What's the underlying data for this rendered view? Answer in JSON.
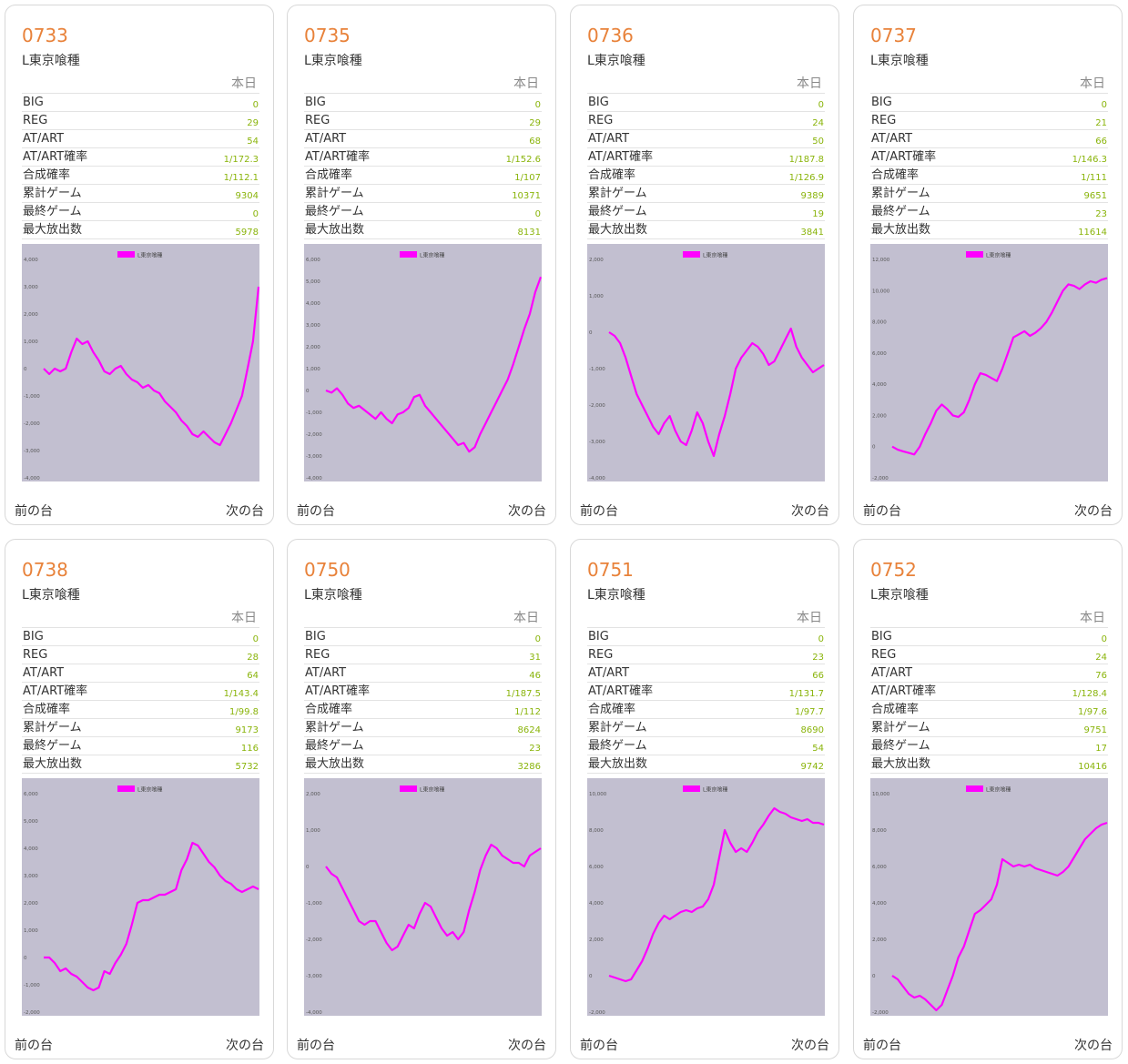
{
  "header_today": "本日",
  "nav": {
    "prev": "前の台",
    "next": "次の台"
  },
  "row_labels": [
    "BIG",
    "REG",
    "AT/ART",
    "AT/ART確率",
    "合成確率",
    "累計ゲーム",
    "最終ゲーム",
    "最大放出数"
  ],
  "colors": {
    "accent": "#e8823a",
    "value": "#8ab40b",
    "series": "#ff00ff",
    "plot_bg": "#c2bfd0"
  },
  "machines": [
    {
      "number": "0733",
      "name": "L東京喰種",
      "values": [
        "0",
        "29",
        "54",
        "1/172.3",
        "1/112.1",
        "9304",
        "0",
        "5978"
      ],
      "chart": {
        "legend": "L東京喰種",
        "ymin": -4000,
        "ymax": 4000,
        "step": 1000,
        "y": [
          0,
          -200,
          0,
          -100,
          0,
          600,
          1100,
          900,
          1000,
          600,
          300,
          -100,
          -200,
          0,
          100,
          -200,
          -400,
          -500,
          -700,
          -600,
          -800,
          -900,
          -1200,
          -1400,
          -1600,
          -1900,
          -2100,
          -2400,
          -2500,
          -2300,
          -2500,
          -2700,
          -2800,
          -2400,
          -2000,
          -1500,
          -1000,
          0,
          1000,
          3000
        ]
      }
    },
    {
      "number": "0735",
      "name": "L東京喰種",
      "values": [
        "0",
        "29",
        "68",
        "1/152.6",
        "1/107",
        "10371",
        "0",
        "8131"
      ],
      "chart": {
        "legend": "L東京喰種",
        "ymin": -4000,
        "ymax": 6000,
        "step": 1000,
        "y": [
          0,
          -100,
          100,
          -200,
          -600,
          -800,
          -700,
          -900,
          -1100,
          -1300,
          -1000,
          -1300,
          -1500,
          -1100,
          -1000,
          -800,
          -300,
          -200,
          -700,
          -1000,
          -1300,
          -1600,
          -1900,
          -2200,
          -2500,
          -2400,
          -2800,
          -2600,
          -2000,
          -1500,
          -1000,
          -500,
          0,
          500,
          1200,
          2000,
          2800,
          3500,
          4500,
          5200
        ]
      }
    },
    {
      "number": "0736",
      "name": "L東京喰種",
      "values": [
        "0",
        "24",
        "50",
        "1/187.8",
        "1/126.9",
        "9389",
        "19",
        "3841"
      ],
      "chart": {
        "legend": "L東京喰種",
        "ymin": -4000,
        "ymax": 2000,
        "step": 1000,
        "y": [
          0,
          -100,
          -300,
          -700,
          -1200,
          -1700,
          -2000,
          -2300,
          -2600,
          -2800,
          -2500,
          -2300,
          -2700,
          -3000,
          -3100,
          -2700,
          -2200,
          -2500,
          -3000,
          -3400,
          -2800,
          -2300,
          -1700,
          -1000,
          -700,
          -500,
          -300,
          -400,
          -600,
          -900,
          -800,
          -500,
          -200,
          100,
          -400,
          -700,
          -900,
          -1100,
          -1000,
          -900
        ]
      }
    },
    {
      "number": "0737",
      "name": "L東京喰種",
      "values": [
        "0",
        "21",
        "66",
        "1/146.3",
        "1/111",
        "9651",
        "23",
        "11614"
      ],
      "chart": {
        "legend": "L東京喰種",
        "ymin": -2000,
        "ymax": 12000,
        "step": 2000,
        "y": [
          0,
          -200,
          -300,
          -400,
          -500,
          0,
          800,
          1500,
          2300,
          2700,
          2400,
          2000,
          1900,
          2200,
          3000,
          4000,
          4700,
          4600,
          4400,
          4200,
          5000,
          6000,
          7000,
          7200,
          7400,
          7100,
          7300,
          7600,
          8000,
          8600,
          9300,
          10000,
          10400,
          10300,
          10100,
          10400,
          10600,
          10500,
          10700,
          10800
        ]
      }
    },
    {
      "number": "0738",
      "name": "L東京喰種",
      "values": [
        "0",
        "28",
        "64",
        "1/143.4",
        "1/99.8",
        "9173",
        "116",
        "5732"
      ],
      "chart": {
        "legend": "L東京喰種",
        "ymin": -2000,
        "ymax": 6000,
        "step": 1000,
        "y": [
          0,
          0,
          -200,
          -500,
          -400,
          -600,
          -700,
          -900,
          -1100,
          -1200,
          -1100,
          -500,
          -600,
          -200,
          100,
          500,
          1200,
          2000,
          2100,
          2100,
          2200,
          2300,
          2300,
          2400,
          2500,
          3200,
          3600,
          4200,
          4100,
          3800,
          3500,
          3300,
          3000,
          2800,
          2700,
          2500,
          2400,
          2500,
          2600,
          2500
        ]
      }
    },
    {
      "number": "0750",
      "name": "L東京喰種",
      "values": [
        "0",
        "31",
        "46",
        "1/187.5",
        "1/112",
        "8624",
        "23",
        "3286"
      ],
      "chart": {
        "legend": "L東京喰種",
        "ymin": -4000,
        "ymax": 2000,
        "step": 1000,
        "y": [
          0,
          -200,
          -300,
          -600,
          -900,
          -1200,
          -1500,
          -1600,
          -1500,
          -1500,
          -1800,
          -2100,
          -2300,
          -2200,
          -1900,
          -1600,
          -1700,
          -1300,
          -1000,
          -1100,
          -1400,
          -1700,
          -1900,
          -1800,
          -2000,
          -1800,
          -1200,
          -700,
          -100,
          300,
          600,
          500,
          300,
          200,
          100,
          100,
          0,
          300,
          400,
          500
        ]
      }
    },
    {
      "number": "0751",
      "name": "L東京喰種",
      "values": [
        "0",
        "23",
        "66",
        "1/131.7",
        "1/97.7",
        "8690",
        "54",
        "9742"
      ],
      "chart": {
        "legend": "L東京喰種",
        "ymin": -2000,
        "ymax": 10000,
        "step": 2000,
        "y": [
          0,
          -100,
          -200,
          -300,
          -200,
          300,
          800,
          1500,
          2300,
          2900,
          3300,
          3100,
          3300,
          3500,
          3600,
          3500,
          3700,
          3800,
          4200,
          5000,
          6500,
          8000,
          7300,
          6800,
          7000,
          6800,
          7300,
          7900,
          8300,
          8800,
          9200,
          9000,
          8900,
          8700,
          8600,
          8500,
          8600,
          8400,
          8400,
          8300
        ]
      }
    },
    {
      "number": "0752",
      "name": "L東京喰種",
      "values": [
        "0",
        "24",
        "76",
        "1/128.4",
        "1/97.6",
        "9751",
        "17",
        "10416"
      ],
      "chart": {
        "legend": "L東京喰種",
        "ymin": -2000,
        "ymax": 10000,
        "step": 2000,
        "y": [
          0,
          -200,
          -600,
          -1000,
          -1200,
          -1100,
          -1300,
          -1600,
          -1900,
          -1600,
          -800,
          0,
          1000,
          1600,
          2500,
          3400,
          3600,
          3900,
          4200,
          5000,
          6400,
          6200,
          6000,
          6100,
          6000,
          6100,
          5900,
          5800,
          5700,
          5600,
          5500,
          5700,
          6000,
          6500,
          7000,
          7500,
          7800,
          8100,
          8300,
          8400
        ]
      }
    }
  ]
}
